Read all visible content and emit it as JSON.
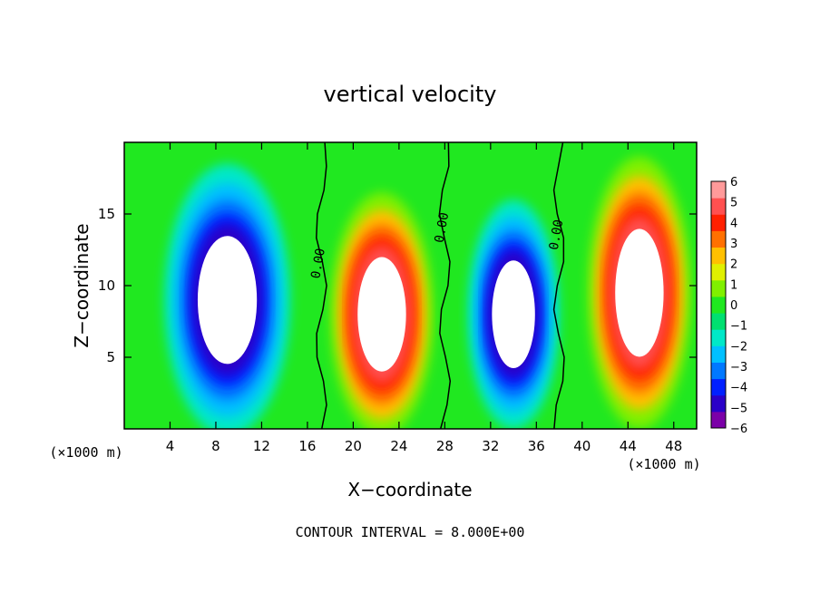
{
  "chart_data": {
    "type": "heatmap",
    "title": "vertical velocity",
    "xlabel": "X−coordinate",
    "ylabel": "Z−coordinate",
    "x_unit_label": "(×1000 m)",
    "y_unit_label": "(×1000 m)",
    "footer": "CONTOUR INTERVAL = 8.000E+00",
    "xlim": [
      0,
      50
    ],
    "ylim": [
      0,
      20
    ],
    "x_ticks": [
      4,
      8,
      12,
      16,
      20,
      24,
      28,
      32,
      36,
      40,
      44,
      48
    ],
    "x_tick_labels": [
      "4",
      "8",
      "12",
      "16",
      "20",
      "24",
      "28",
      "32",
      "36",
      "40",
      "44",
      "48"
    ],
    "y_ticks": [
      5,
      10,
      15
    ],
    "y_tick_labels": [
      "5",
      "10",
      "15"
    ],
    "colorbar": {
      "min": -6,
      "max": 6,
      "ticks": [
        6,
        5,
        4,
        3,
        2,
        1,
        0,
        -1,
        -2,
        -3,
        -4,
        -5,
        -6
      ],
      "tick_labels": [
        "6",
        "5",
        "4",
        "3",
        "2",
        "1",
        "0",
        "−1",
        "−2",
        "−3",
        "−4",
        "−5",
        "−6"
      ],
      "colors": [
        "#7b00a8",
        "#2a00c8",
        "#0020ff",
        "#0078ff",
        "#00c0ff",
        "#00e8c8",
        "#00e070",
        "#20e820",
        "#80f000",
        "#e0f000",
        "#ffc000",
        "#ff7000",
        "#ff2000",
        "#ff5050",
        "#ff9a9a"
      ]
    },
    "cells": [
      {
        "name": "downdraft-cell-1",
        "x_center": 9.0,
        "z_center": 9.0,
        "sign": "negative",
        "x_halfwidth": 5.5,
        "z_halfheight": 9.5
      },
      {
        "name": "updraft-cell-1",
        "x_center": 22.5,
        "z_center": 8.0,
        "sign": "positive",
        "x_halfwidth": 4.5,
        "z_halfheight": 8.5
      },
      {
        "name": "downdraft-cell-2",
        "x_center": 34.0,
        "z_center": 8.0,
        "sign": "negative",
        "x_halfwidth": 4.0,
        "z_halfheight": 8.0
      },
      {
        "name": "updraft-cell-2",
        "x_center": 45.0,
        "z_center": 9.5,
        "sign": "positive",
        "x_halfwidth": 4.5,
        "z_halfheight": 9.5
      }
    ],
    "zero_contour_labels": [
      {
        "text": "0.00",
        "x": 17.2,
        "z": 11.5
      },
      {
        "text": "0.00",
        "x": 28.0,
        "z": 14.0
      },
      {
        "text": "0.00",
        "x": 38.0,
        "z": 13.5
      }
    ],
    "grid": false
  }
}
